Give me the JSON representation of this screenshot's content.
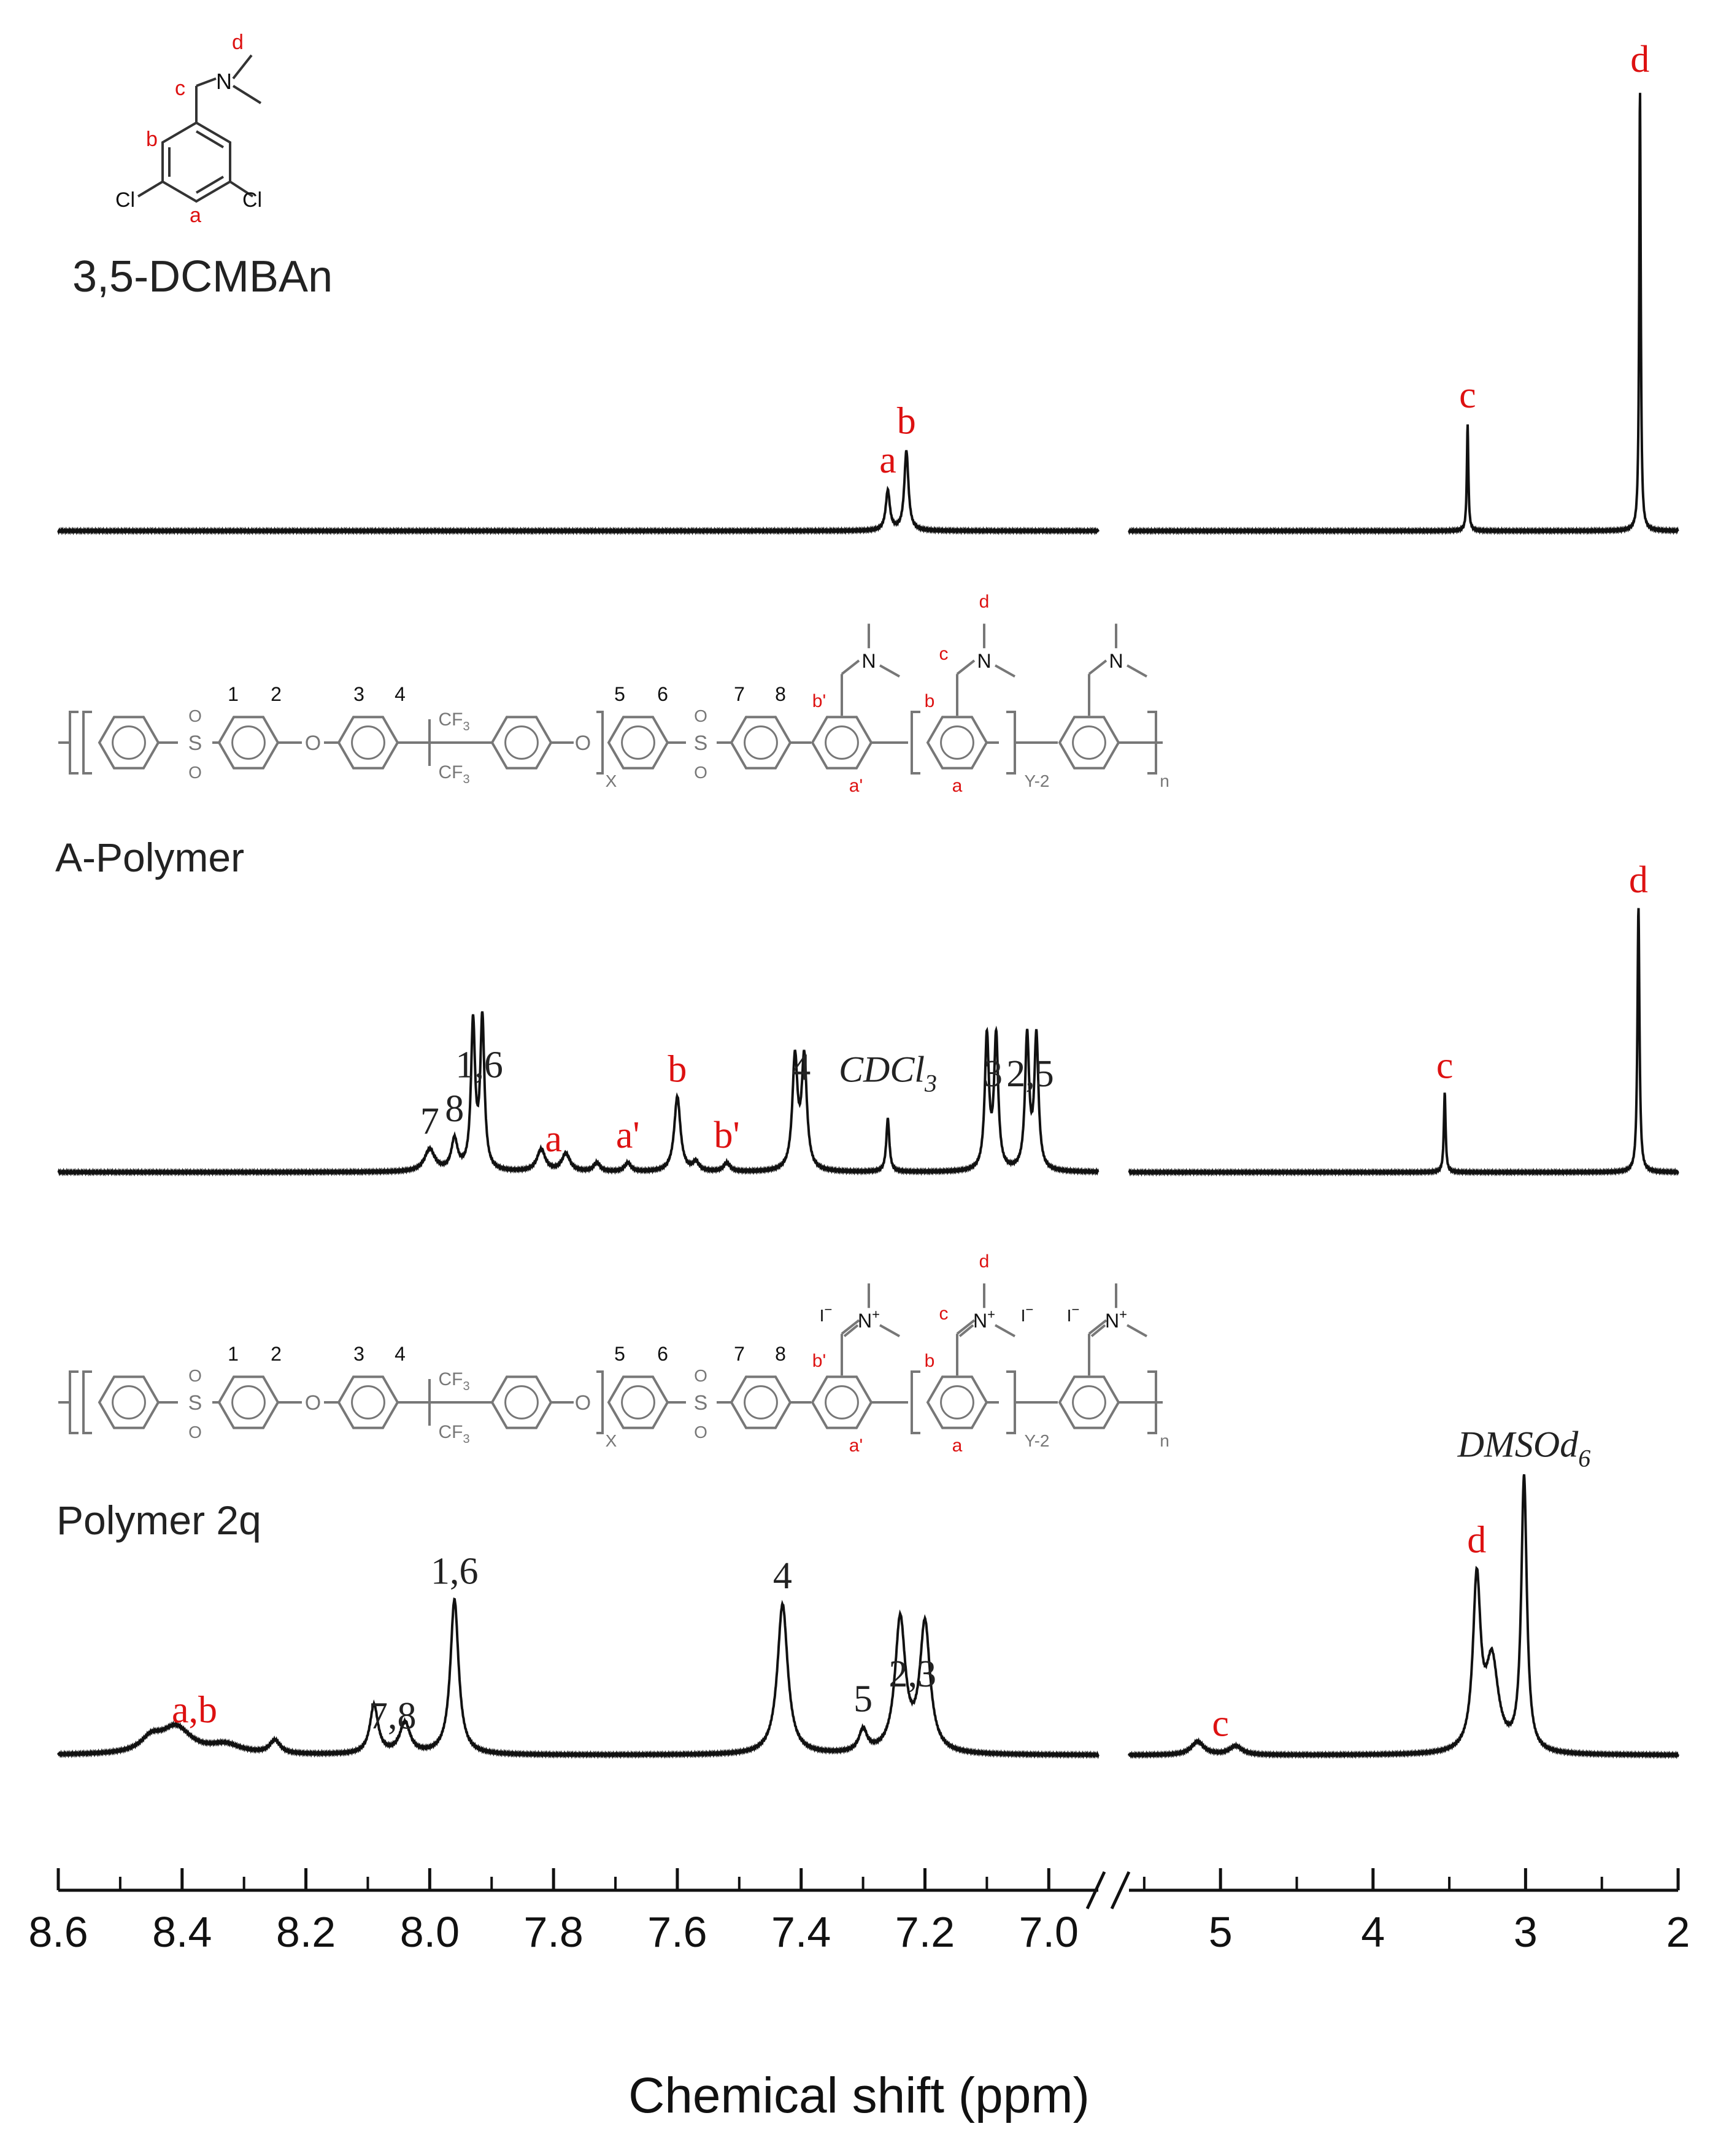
{
  "chart_data": {
    "type": "line",
    "xlabel": "Chemical shift (ppm)",
    "axis": {
      "reversed": true,
      "broken": true,
      "left_segment": {
        "range": [
          8.6,
          6.92
        ],
        "ticks": [
          8.6,
          8.4,
          8.2,
          8.0,
          7.8,
          7.6,
          7.4,
          7.2,
          7.0
        ],
        "tick_labels": [
          "8.6",
          "8.4",
          "8.2",
          "8.0",
          "7.8",
          "7.6",
          "7.4",
          "7.2",
          "7.0"
        ]
      },
      "right_segment": {
        "range": [
          5.6,
          2.0
        ],
        "ticks": [
          5,
          4,
          3,
          2
        ],
        "tick_labels": [
          "5",
          "4",
          "3",
          "2"
        ]
      }
    },
    "series": [
      {
        "name": "3,5-DCMBAn",
        "peaks": [
          {
            "ppm": 7.26,
            "height": 0.09,
            "width": 0.004
          },
          {
            "ppm": 7.23,
            "height": 0.18,
            "width": 0.004
          },
          {
            "ppm": 3.38,
            "height": 0.24,
            "width": 0.006
          },
          {
            "ppm": 2.25,
            "height": 1.0,
            "width": 0.006
          }
        ],
        "annotations": [
          {
            "text": "a",
            "ppm": 7.26,
            "color": "#dd1111"
          },
          {
            "text": "b",
            "ppm": 7.23,
            "color": "#dd1111"
          },
          {
            "text": "c",
            "ppm": 3.38,
            "color": "#dd1111"
          },
          {
            "text": "d",
            "ppm": 2.25,
            "color": "#dd1111"
          }
        ]
      },
      {
        "name": "A-Polymer",
        "peaks": [
          {
            "ppm": 8.0,
            "height": 0.05,
            "width": 0.01
          },
          {
            "ppm": 7.96,
            "height": 0.07,
            "width": 0.006
          },
          {
            "ppm": 7.93,
            "height": 0.33,
            "width": 0.004
          },
          {
            "ppm": 7.915,
            "height": 0.34,
            "width": 0.004
          },
          {
            "ppm": 7.82,
            "height": 0.05,
            "width": 0.008
          },
          {
            "ppm": 7.78,
            "height": 0.04,
            "width": 0.008
          },
          {
            "ppm": 7.73,
            "height": 0.02,
            "width": 0.006
          },
          {
            "ppm": 7.68,
            "height": 0.02,
            "width": 0.006
          },
          {
            "ppm": 7.6,
            "height": 0.17,
            "width": 0.006
          },
          {
            "ppm": 7.57,
            "height": 0.02,
            "width": 0.006
          },
          {
            "ppm": 7.52,
            "height": 0.02,
            "width": 0.006
          },
          {
            "ppm": 7.41,
            "height": 0.25,
            "width": 0.005
          },
          {
            "ppm": 7.395,
            "height": 0.25,
            "width": 0.005
          },
          {
            "ppm": 7.26,
            "height": 0.12,
            "width": 0.003
          },
          {
            "ppm": 7.1,
            "height": 0.3,
            "width": 0.004
          },
          {
            "ppm": 7.085,
            "height": 0.3,
            "width": 0.004
          },
          {
            "ppm": 7.035,
            "height": 0.3,
            "width": 0.004
          },
          {
            "ppm": 7.02,
            "height": 0.3,
            "width": 0.004
          },
          {
            "ppm": 3.53,
            "height": 0.18,
            "width": 0.007
          },
          {
            "ppm": 2.26,
            "height": 0.6,
            "width": 0.008
          }
        ],
        "annotations": [
          {
            "text": "7",
            "ppm": 8.0,
            "color": "#222222"
          },
          {
            "text": "8",
            "ppm": 7.96,
            "color": "#222222"
          },
          {
            "text": "1,6",
            "ppm": 7.92,
            "color": "#222222"
          },
          {
            "text": "a",
            "ppm": 7.8,
            "color": "#dd1111"
          },
          {
            "text": "a'",
            "ppm": 7.68,
            "color": "#dd1111"
          },
          {
            "text": "b",
            "ppm": 7.6,
            "color": "#dd1111"
          },
          {
            "text": "b'",
            "ppm": 7.52,
            "color": "#dd1111"
          },
          {
            "text": "4",
            "ppm": 7.4,
            "color": "#222222"
          },
          {
            "text": "CDCl",
            "sub": "3",
            "ppm": 7.26,
            "color": "#222222",
            "italic": true
          },
          {
            "text": "3",
            "ppm": 7.09,
            "color": "#222222"
          },
          {
            "text": "2,5",
            "ppm": 7.03,
            "color": "#222222"
          },
          {
            "text": "c",
            "ppm": 3.53,
            "color": "#dd1111"
          },
          {
            "text": "d",
            "ppm": 2.26,
            "color": "#dd1111"
          }
        ]
      },
      {
        "name": "Polymer 2q",
        "peaks": [
          {
            "ppm": 8.45,
            "height": 0.03,
            "width": 0.02
          },
          {
            "ppm": 8.41,
            "height": 0.06,
            "width": 0.03
          },
          {
            "ppm": 8.33,
            "height": 0.02,
            "width": 0.03
          },
          {
            "ppm": 8.25,
            "height": 0.03,
            "width": 0.01
          },
          {
            "ppm": 8.09,
            "height": 0.11,
            "width": 0.008
          },
          {
            "ppm": 8.04,
            "height": 0.07,
            "width": 0.01
          },
          {
            "ppm": 7.96,
            "height": 0.35,
            "width": 0.008
          },
          {
            "ppm": 7.43,
            "height": 0.34,
            "width": 0.01
          },
          {
            "ppm": 7.3,
            "height": 0.05,
            "width": 0.008
          },
          {
            "ppm": 7.24,
            "height": 0.3,
            "width": 0.01
          },
          {
            "ppm": 7.2,
            "height": 0.29,
            "width": 0.01
          },
          {
            "ppm": 5.15,
            "height": 0.03,
            "width": 0.05
          },
          {
            "ppm": 4.9,
            "height": 0.02,
            "width": 0.05
          },
          {
            "ppm": 3.32,
            "height": 0.38,
            "width": 0.03
          },
          {
            "ppm": 3.22,
            "height": 0.2,
            "width": 0.05
          },
          {
            "ppm": 3.01,
            "height": 0.62,
            "width": 0.022
          }
        ],
        "annotations": [
          {
            "text": "a,b",
            "ppm": 8.38,
            "color": "#dd1111"
          },
          {
            "text": "7,8",
            "ppm": 8.06,
            "color": "#222222"
          },
          {
            "text": "1,6",
            "ppm": 7.96,
            "color": "#222222"
          },
          {
            "text": "4",
            "ppm": 7.43,
            "color": "#222222"
          },
          {
            "text": "5",
            "ppm": 7.3,
            "color": "#222222"
          },
          {
            "text": "2,3",
            "ppm": 7.22,
            "color": "#222222"
          },
          {
            "text": "c",
            "ppm": 5.0,
            "color": "#dd1111"
          },
          {
            "text": "d",
            "ppm": 3.32,
            "color": "#dd1111"
          },
          {
            "text": "DMSOd",
            "sub": "6",
            "ppm": 3.01,
            "color": "#222222",
            "italic": true
          }
        ]
      }
    ]
  },
  "structures": {
    "monomer": {
      "labels": {
        "a": "a",
        "b": "b",
        "c": "c",
        "d": "d"
      },
      "atoms": {
        "cl": "Cl",
        "n": "N"
      }
    },
    "polymer": {
      "numbers": [
        "1",
        "2",
        "3",
        "4",
        "5",
        "6",
        "7",
        "8"
      ],
      "red_labels": {
        "a": "a",
        "b": "b",
        "c": "c",
        "d": "d",
        "a_prime": "a'",
        "b_prime": "b'"
      },
      "atoms": {
        "o": "O",
        "s": "S",
        "cf3": "CF",
        "cf3_sub": "3",
        "n": "N",
        "n_plus": "N",
        "plus": "+",
        "iodide": "I",
        "minus": "−"
      },
      "subscripts": {
        "x": "X",
        "y": "Y-2",
        "n": "n"
      }
    }
  },
  "colors": {
    "red": "#dd1111",
    "ink": "#111111",
    "gray": "#777777"
  }
}
